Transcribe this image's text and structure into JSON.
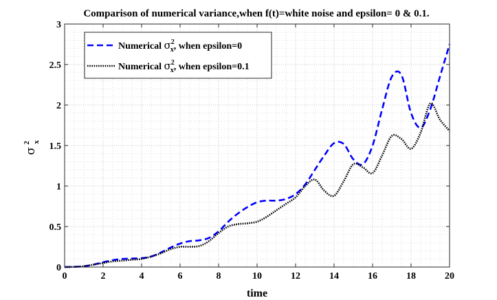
{
  "chart_data": {
    "type": "line",
    "title": "Comparison of numerical variance,when f(t)=white noise and epsilon= 0 & 0.1.",
    "xlabel": "time",
    "ylabel": {
      "symbol": "σ",
      "sup": "2",
      "sub": "x"
    },
    "xlim": [
      0,
      20
    ],
    "ylim": [
      0,
      3
    ],
    "xticks": [
      "0",
      "2",
      "4",
      "6",
      "8",
      "10",
      "12",
      "14",
      "16",
      "18",
      "20"
    ],
    "yticks": [
      "0",
      "0.5",
      "1",
      "1.5",
      "2",
      "2.5",
      "3"
    ],
    "grid": "on (major and minor, dotted)",
    "legend_position": "top-left",
    "series": [
      {
        "legend": {
          "prefix": "Numerical ",
          "symbol": "σ",
          "sup": "2",
          "sub": "x",
          "suffix": ", when epsilon=0"
        },
        "color": "#0000ff",
        "style": "dashed",
        "x": [
          0,
          0.5,
          1,
          1.5,
          2,
          2.5,
          3,
          3.5,
          4,
          4.5,
          5,
          5.5,
          6,
          6.5,
          7,
          7.5,
          8,
          8.5,
          9,
          9.5,
          10,
          10.5,
          11,
          11.5,
          12,
          12.5,
          13,
          13.5,
          14,
          14.5,
          15,
          15.5,
          16,
          16.5,
          17,
          17.5,
          18,
          18.5,
          19,
          19.5,
          20
        ],
        "y": [
          0,
          0.003,
          0.01,
          0.03,
          0.06,
          0.085,
          0.1,
          0.105,
          0.11,
          0.13,
          0.18,
          0.24,
          0.29,
          0.32,
          0.33,
          0.36,
          0.44,
          0.56,
          0.66,
          0.74,
          0.8,
          0.82,
          0.82,
          0.84,
          0.9,
          1.02,
          1.2,
          1.38,
          1.53,
          1.52,
          1.33,
          1.27,
          1.5,
          1.95,
          2.35,
          2.37,
          1.9,
          1.72,
          1.95,
          2.35,
          2.75
        ]
      },
      {
        "legend": {
          "prefix": "Numerical ",
          "symbol": "σ",
          "sup": "2",
          "sub": "x",
          "suffix": ", when epsilon=0.1"
        },
        "color": "#000000",
        "style": "dotted",
        "x": [
          0,
          0.5,
          1,
          1.5,
          2,
          2.5,
          3,
          3.5,
          4,
          4.5,
          5,
          5.5,
          6,
          6.5,
          7,
          7.5,
          8,
          8.5,
          9,
          9.5,
          10,
          10.5,
          11,
          11.5,
          12,
          12.5,
          13,
          13.5,
          14,
          14.5,
          15,
          15.5,
          16,
          16.5,
          17,
          17.5,
          18,
          18.5,
          19,
          19.5,
          20
        ],
        "y": [
          0,
          0.003,
          0.01,
          0.03,
          0.05,
          0.07,
          0.08,
          0.09,
          0.1,
          0.13,
          0.17,
          0.22,
          0.25,
          0.25,
          0.26,
          0.32,
          0.42,
          0.5,
          0.53,
          0.54,
          0.56,
          0.62,
          0.7,
          0.78,
          0.86,
          1.0,
          1.08,
          0.94,
          0.88,
          1.06,
          1.27,
          1.23,
          1.16,
          1.38,
          1.62,
          1.58,
          1.46,
          1.66,
          2.02,
          1.82,
          1.68
        ]
      }
    ]
  }
}
